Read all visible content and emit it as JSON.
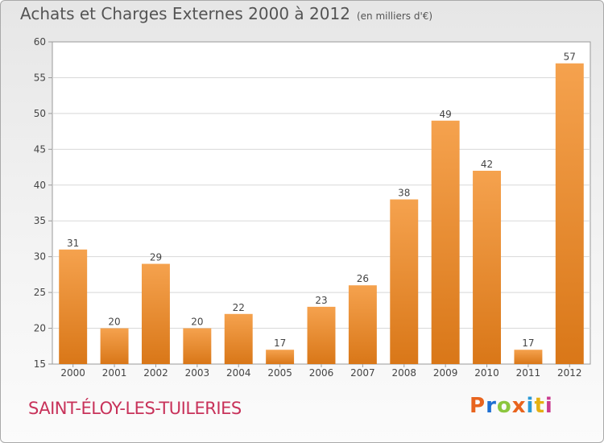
{
  "header": {
    "title": "Achats et Charges Externes 2000 à 2012",
    "subtitle": "(en milliers d'€)"
  },
  "footer": {
    "commune": "SAINT-ÉLOY-LES-TUILERIES",
    "logo": {
      "text": "Proxiti",
      "colors": [
        "#e8641e",
        "#1e6fd2",
        "#8cc63e",
        "#e8641e",
        "#2a9ad6",
        "#e4b012",
        "#c93b8f"
      ]
    }
  },
  "chart_data": {
    "type": "bar",
    "categories": [
      "2000",
      "2001",
      "2002",
      "2003",
      "2004",
      "2005",
      "2006",
      "2007",
      "2008",
      "2009",
      "2010",
      "2011",
      "2012"
    ],
    "values": [
      31,
      20,
      29,
      20,
      22,
      17,
      23,
      26,
      38,
      49,
      42,
      17,
      57
    ],
    "ylim": [
      15,
      60
    ],
    "yticks": [
      15,
      20,
      25,
      30,
      35,
      40,
      45,
      50,
      55,
      60
    ],
    "grid": true,
    "bar_color_top": "#f5a24e",
    "bar_color_bottom": "#d97718"
  }
}
